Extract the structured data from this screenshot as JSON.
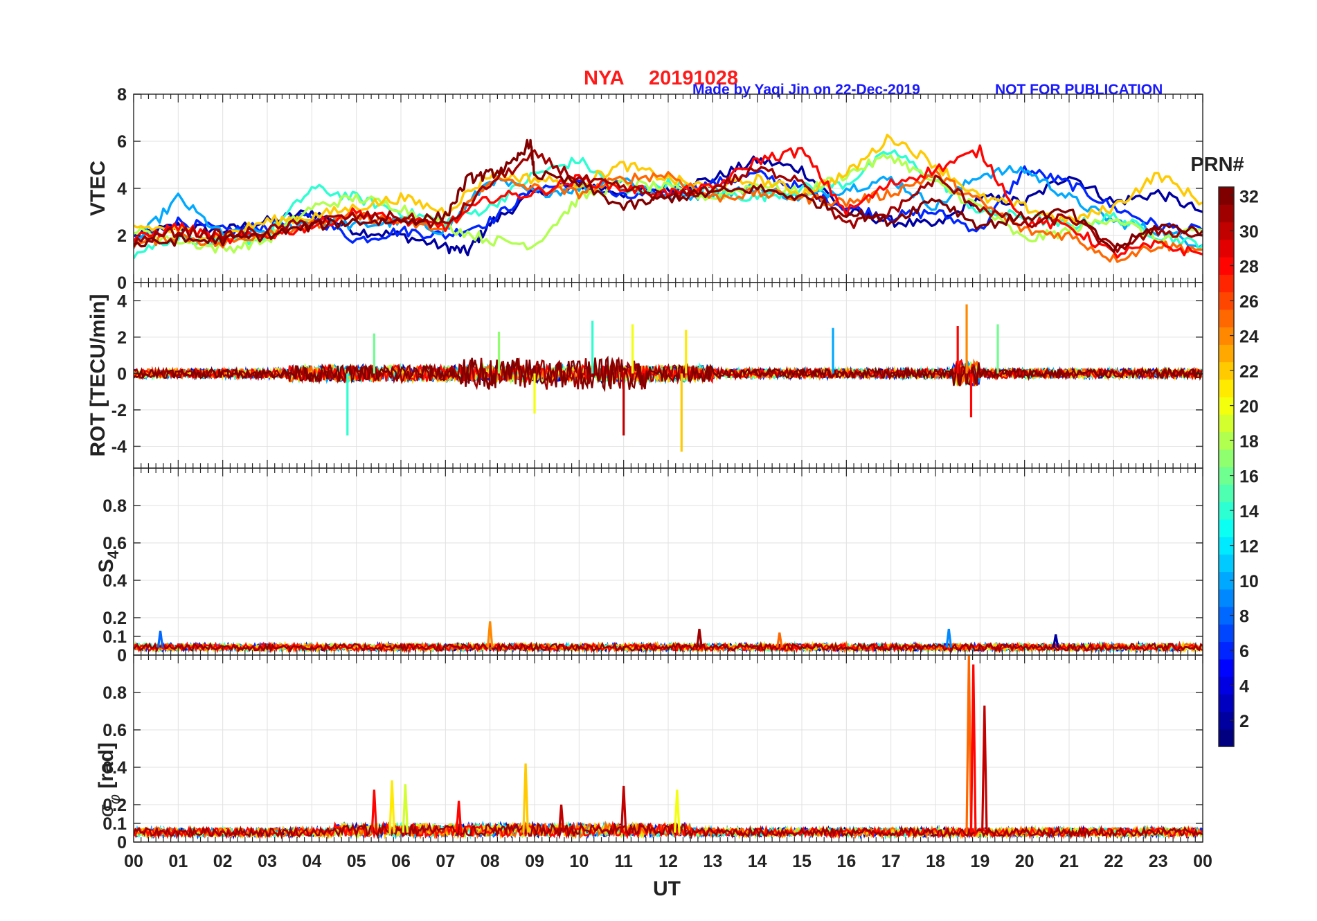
{
  "header": {
    "station": "NYA",
    "date": "20191028",
    "credit": "Made by Yaqi Jin on 22-Dec-2019",
    "notice": "NOT FOR PUBLICATION",
    "station_color": "#ff1a1a",
    "credit_color": "#1a1aff"
  },
  "chart_data": [
    {
      "type": "line",
      "panel": "vtec",
      "ylabel": "VTEC",
      "ylim": [
        0,
        8
      ],
      "yticks": [
        0,
        2,
        4,
        6,
        8
      ],
      "ytick_labels": [
        "0",
        "2",
        "4",
        "6",
        "8"
      ],
      "grid": true,
      "series": [
        {
          "prn": 2,
          "x": [
            0,
            1,
            2,
            3,
            4,
            5,
            6,
            7,
            7.5,
            8,
            9,
            10,
            11,
            12,
            13,
            14,
            15,
            16,
            17,
            18,
            19,
            20,
            21,
            22,
            23,
            24
          ],
          "values": [
            2.0,
            2.4,
            2.2,
            2.6,
            3.0,
            2.2,
            2.0,
            1.5,
            1.3,
            2.5,
            3.8,
            4.2,
            3.8,
            4.0,
            4.4,
            5.2,
            4.8,
            3.0,
            2.6,
            2.4,
            3.6,
            3.4,
            4.6,
            3.4,
            3.8,
            3.0
          ]
        },
        {
          "prn": 6,
          "x": [
            0,
            1,
            2,
            3,
            4,
            5,
            6,
            7,
            8,
            9,
            10,
            11,
            12,
            13,
            14,
            15,
            16,
            17,
            18,
            19,
            20,
            21,
            22,
            23,
            24
          ],
          "values": [
            1.8,
            2.6,
            2.2,
            2.4,
            2.8,
            1.8,
            2.2,
            2.0,
            2.6,
            4.0,
            4.2,
            3.6,
            3.8,
            4.2,
            4.6,
            4.0,
            3.2,
            2.8,
            3.0,
            2.2,
            4.8,
            4.2,
            3.2,
            2.4,
            2.2
          ]
        },
        {
          "prn": 10,
          "x": [
            0,
            1,
            2,
            3,
            4,
            5,
            6,
            7,
            8,
            9,
            10,
            11,
            12,
            13,
            14,
            15,
            16,
            17,
            18,
            19,
            20,
            21,
            22,
            23,
            24
          ],
          "values": [
            1.6,
            3.6,
            2.0,
            2.2,
            2.6,
            2.4,
            2.6,
            2.2,
            4.4,
            3.8,
            4.0,
            4.4,
            3.6,
            3.8,
            4.0,
            3.6,
            4.0,
            4.4,
            3.2,
            4.6,
            4.8,
            3.6,
            2.6,
            2.2,
            1.6
          ]
        },
        {
          "prn": 14,
          "x": [
            0,
            1,
            2,
            3,
            4,
            5,
            6,
            7,
            8,
            9,
            10,
            11,
            12,
            13,
            14,
            15,
            16,
            17,
            18,
            19,
            20,
            21,
            22,
            23,
            24
          ],
          "values": [
            1.2,
            2.0,
            1.6,
            2.0,
            4.0,
            3.6,
            3.0,
            2.6,
            3.2,
            4.6,
            5.2,
            3.8,
            4.2,
            3.8,
            3.6,
            4.0,
            4.2,
            5.6,
            4.4,
            3.0,
            2.8,
            2.4,
            2.8,
            2.0,
            1.6
          ]
        },
        {
          "prn": 18,
          "x": [
            0,
            1,
            2,
            3,
            4,
            5,
            6,
            7,
            8,
            9,
            10,
            11,
            12,
            13,
            14,
            15,
            16,
            17,
            18,
            19,
            20,
            21,
            22,
            23,
            24
          ],
          "values": [
            2.2,
            1.8,
            1.4,
            1.8,
            3.2,
            3.6,
            3.2,
            2.4,
            1.8,
            1.6,
            3.6,
            4.2,
            4.0,
            3.6,
            4.2,
            3.8,
            4.6,
            5.4,
            4.2,
            3.2,
            1.8,
            2.2,
            2.8,
            1.8,
            2.2
          ]
        },
        {
          "prn": 22,
          "x": [
            0,
            1,
            2,
            3,
            4,
            5,
            6,
            7,
            8,
            9,
            10,
            11,
            12,
            13,
            14,
            15,
            16,
            17,
            18,
            19,
            20,
            21,
            22,
            23,
            24
          ],
          "values": [
            2.4,
            2.2,
            2.0,
            2.6,
            2.8,
            3.2,
            3.6,
            3.0,
            4.6,
            4.4,
            4.2,
            5.0,
            4.4,
            4.0,
            4.4,
            3.8,
            4.6,
            6.2,
            5.0,
            3.6,
            3.2,
            2.6,
            3.2,
            4.6,
            3.4
          ]
        },
        {
          "prn": 25,
          "x": [
            0,
            1,
            2,
            3,
            4,
            5,
            6,
            7,
            8,
            9,
            10,
            11,
            12,
            13,
            14,
            15,
            16,
            17,
            18,
            19,
            20,
            21,
            22,
            23,
            24
          ],
          "values": [
            1.6,
            2.0,
            1.6,
            2.2,
            2.4,
            2.8,
            2.6,
            2.2,
            4.4,
            4.0,
            3.8,
            4.4,
            4.6,
            3.6,
            3.8,
            3.6,
            3.4,
            3.8,
            4.6,
            3.4,
            2.2,
            2.0,
            1.0,
            1.6,
            1.4
          ]
        },
        {
          "prn": 28,
          "x": [
            0,
            1,
            2,
            3,
            4,
            5,
            6,
            7,
            8,
            9,
            10,
            11,
            12,
            13,
            14,
            15,
            16,
            17,
            18,
            19,
            20,
            21,
            22,
            23,
            24
          ],
          "values": [
            1.8,
            2.4,
            1.8,
            2.0,
            2.4,
            3.0,
            2.6,
            2.4,
            3.6,
            3.8,
            4.4,
            4.0,
            3.8,
            4.0,
            5.2,
            5.6,
            3.0,
            4.2,
            4.8,
            5.6,
            2.6,
            2.4,
            1.2,
            1.6,
            1.2
          ]
        },
        {
          "prn": 31,
          "x": [
            0,
            1,
            2,
            3,
            4,
            5,
            6,
            7,
            8,
            9,
            10,
            11,
            12,
            13,
            14,
            15,
            16,
            17,
            18,
            19,
            20,
            21,
            22,
            23,
            24
          ],
          "values": [
            1.7,
            2.2,
            2.0,
            2.2,
            2.6,
            2.8,
            2.8,
            2.4,
            4.2,
            5.4,
            4.4,
            4.0,
            3.6,
            4.0,
            4.8,
            4.4,
            2.4,
            3.0,
            4.4,
            3.2,
            2.4,
            2.8,
            1.4,
            2.2,
            2.0
          ]
        },
        {
          "prn": 32,
          "x": [
            0,
            1,
            2,
            3,
            4,
            5,
            6,
            7,
            7.5,
            8,
            8.5,
            8.9,
            9,
            10,
            11,
            12,
            13,
            14,
            15,
            16,
            17,
            18,
            19,
            20,
            21,
            22,
            23,
            24
          ],
          "values": [
            1.6,
            1.8,
            1.8,
            2.0,
            2.4,
            2.6,
            2.6,
            2.8,
            4.4,
            4.6,
            5.0,
            6.0,
            4.6,
            4.2,
            3.2,
            3.6,
            3.8,
            4.0,
            3.6,
            3.0,
            2.6,
            3.6,
            2.4,
            2.8,
            3.0,
            1.4,
            2.4,
            2.2
          ]
        }
      ]
    },
    {
      "type": "line",
      "panel": "rot",
      "ylabel": "ROT [TECU/min]",
      "ylim": [
        -5.2,
        5.0
      ],
      "yticks": [
        -4,
        -2,
        0,
        2,
        4
      ],
      "ytick_labels": [
        "-4",
        "-2",
        "0",
        "2",
        "4"
      ],
      "grid": true,
      "spikes": [
        {
          "x": 4.8,
          "value": -3.4,
          "prn": 14
        },
        {
          "x": 5.4,
          "value": 2.2,
          "prn": 16
        },
        {
          "x": 8.2,
          "value": 2.3,
          "prn": 17
        },
        {
          "x": 9.0,
          "value": -2.2,
          "prn": 20
        },
        {
          "x": 10.3,
          "value": 2.9,
          "prn": 14
        },
        {
          "x": 11.0,
          "value": -3.4,
          "prn": 30
        },
        {
          "x": 11.2,
          "value": 2.7,
          "prn": 20
        },
        {
          "x": 12.3,
          "value": -4.3,
          "prn": 22
        },
        {
          "x": 12.4,
          "value": 2.4,
          "prn": 21
        },
        {
          "x": 15.7,
          "value": 2.5,
          "prn": 10
        },
        {
          "x": 18.5,
          "value": 2.6,
          "prn": 28
        },
        {
          "x": 18.7,
          "value": 3.8,
          "prn": 24
        },
        {
          "x": 18.8,
          "value": -2.4,
          "prn": 28
        },
        {
          "x": 19.4,
          "value": 2.7,
          "prn": 16
        }
      ]
    },
    {
      "type": "line",
      "panel": "s4",
      "ylabel": "S4",
      "ylim": [
        0,
        1.0
      ],
      "yticks": [
        0,
        0.1,
        0.2,
        0.4,
        0.6,
        0.8
      ],
      "ytick_labels": [
        "0",
        "0.1",
        "0.2",
        "0.4",
        "0.6",
        "0.8"
      ],
      "grid": true,
      "baseline": 0.04,
      "peaks": [
        {
          "x": 0.6,
          "value": 0.13,
          "prn": 8
        },
        {
          "x": 8.0,
          "value": 0.18,
          "prn": 24
        },
        {
          "x": 12.7,
          "value": 0.14,
          "prn": 31
        },
        {
          "x": 14.5,
          "value": 0.12,
          "prn": 25
        },
        {
          "x": 18.3,
          "value": 0.14,
          "prn": 9
        },
        {
          "x": 20.7,
          "value": 0.11,
          "prn": 2
        }
      ]
    },
    {
      "type": "line",
      "panel": "sigma_phi",
      "ylabel": "σφ [rad]",
      "ylim": [
        0,
        1.0
      ],
      "yticks": [
        0,
        0.1,
        0.2,
        0.4,
        0.6,
        0.8
      ],
      "ytick_labels": [
        "0",
        "0.1",
        "0.2",
        "0.4",
        "0.6",
        "0.8"
      ],
      "grid": true,
      "baseline": 0.05,
      "peaks": [
        {
          "x": 5.4,
          "value": 0.28,
          "prn": 28
        },
        {
          "x": 5.8,
          "value": 0.33,
          "prn": 21
        },
        {
          "x": 6.1,
          "value": 0.31,
          "prn": 19
        },
        {
          "x": 7.3,
          "value": 0.22,
          "prn": 28
        },
        {
          "x": 8.8,
          "value": 0.42,
          "prn": 22
        },
        {
          "x": 9.6,
          "value": 0.2,
          "prn": 30
        },
        {
          "x": 11.0,
          "value": 0.3,
          "prn": 30
        },
        {
          "x": 12.2,
          "value": 0.28,
          "prn": 20
        },
        {
          "x": 18.75,
          "value": 1.0,
          "prn": 25
        },
        {
          "x": 18.85,
          "value": 0.95,
          "prn": 28
        },
        {
          "x": 19.1,
          "value": 0.73,
          "prn": 30
        }
      ]
    }
  ],
  "x_axis": {
    "label": "UT",
    "xlim": [
      0,
      24
    ],
    "tick_labels": [
      "00",
      "01",
      "02",
      "03",
      "04",
      "05",
      "06",
      "07",
      "08",
      "09",
      "10",
      "11",
      "12",
      "13",
      "14",
      "15",
      "16",
      "17",
      "18",
      "19",
      "20",
      "21",
      "22",
      "23",
      "00"
    ]
  },
  "colorbar": {
    "title": "PRN#",
    "range": [
      1,
      32
    ],
    "tick_labels": [
      "2",
      "4",
      "6",
      "8",
      "10",
      "12",
      "14",
      "16",
      "18",
      "20",
      "22",
      "24",
      "26",
      "28",
      "30",
      "32"
    ],
    "colormap": "jet"
  }
}
